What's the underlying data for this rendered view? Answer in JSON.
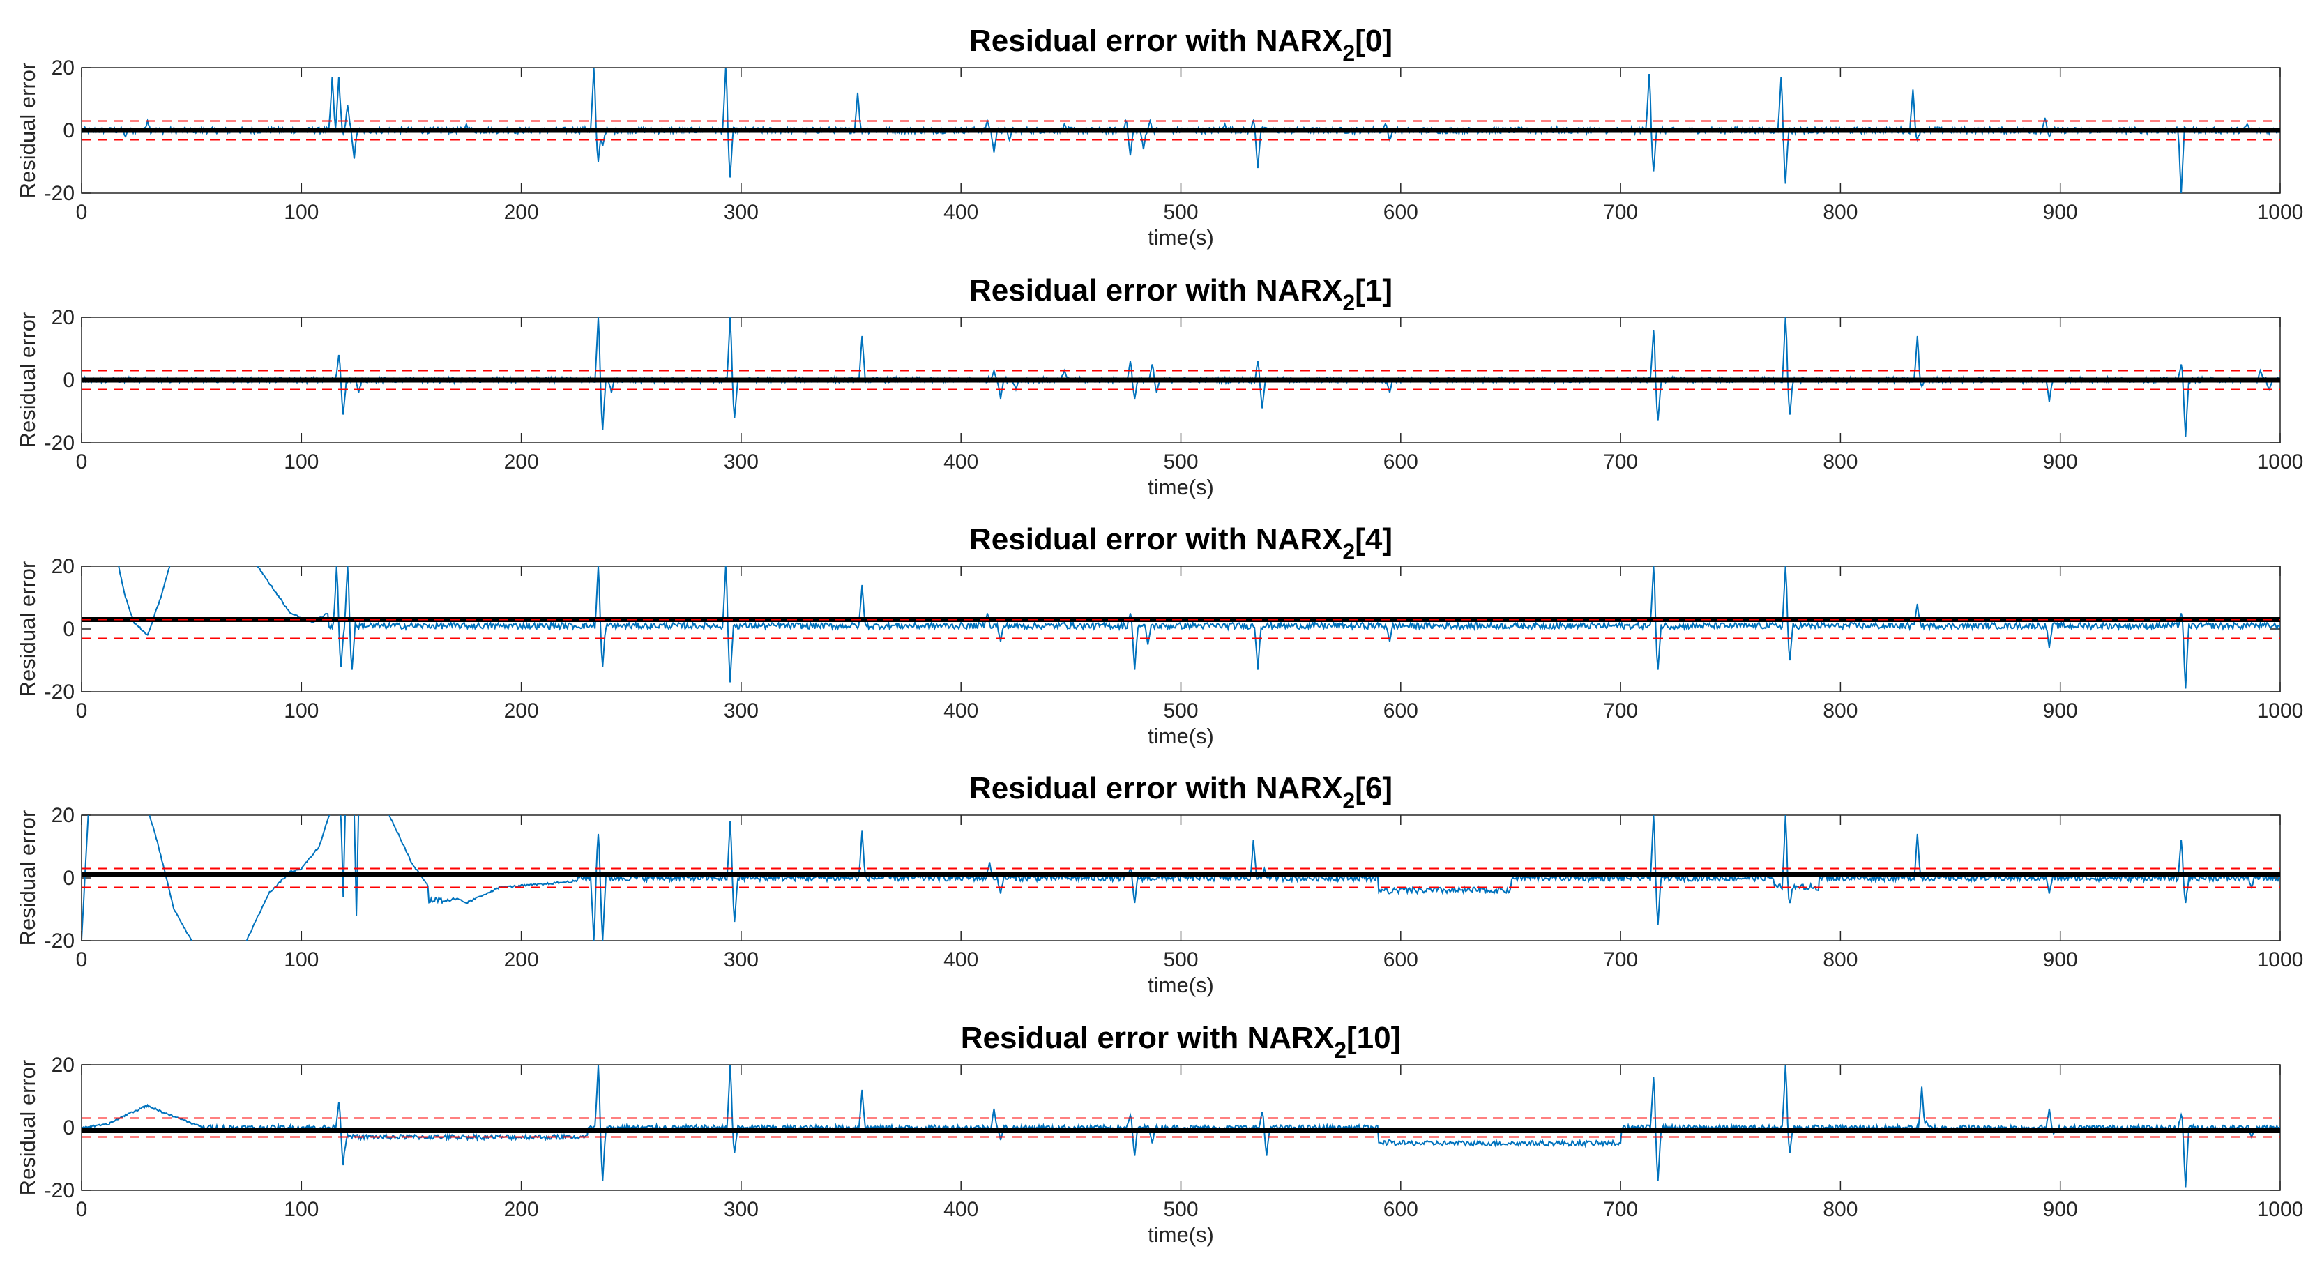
{
  "colors": {
    "residual": "#0072BD",
    "threshold": "#FF0000",
    "bias": "#000000",
    "axis": "#262626"
  },
  "chart_data": [
    {
      "type": "line",
      "title": "Residual error with NARX_2[0]",
      "title_parts": {
        "prefix": "Residual error with NARX",
        "subscript": "2",
        "suffix": "[0]"
      },
      "xlabel": "time(s)",
      "ylabel": "Residual error",
      "xlim": [
        0,
        1000
      ],
      "ylim": [
        -20,
        20
      ],
      "xticks": [
        0,
        100,
        200,
        300,
        400,
        500,
        600,
        700,
        800,
        900,
        1000
      ],
      "yticks": [
        -20,
        0,
        20
      ],
      "thresholds": [
        3,
        -3
      ],
      "bias_level": 0,
      "series": [
        {
          "name": "Residual error",
          "baseline": 0,
          "noise": 1.0,
          "events": [
            [
              20,
              -2
            ],
            [
              30,
              3
            ],
            [
              114,
              17
            ],
            [
              117,
              17
            ],
            [
              121,
              8
            ],
            [
              124,
              -9
            ],
            [
              175,
              2
            ],
            [
              233,
              20
            ],
            [
              235,
              -10
            ],
            [
              237,
              -5
            ],
            [
              293,
              20
            ],
            [
              295,
              -15
            ],
            [
              353,
              12
            ],
            [
              412,
              3
            ],
            [
              415,
              -7
            ],
            [
              422,
              -3
            ],
            [
              447,
              2
            ],
            [
              475,
              3
            ],
            [
              477,
              -8
            ],
            [
              483,
              -6
            ],
            [
              486,
              3
            ],
            [
              520,
              2
            ],
            [
              533,
              3
            ],
            [
              535,
              -12
            ],
            [
              593,
              2
            ],
            [
              595,
              -3
            ],
            [
              713,
              18
            ],
            [
              715,
              -13
            ],
            [
              773,
              17
            ],
            [
              775,
              -17
            ],
            [
              833,
              13
            ],
            [
              835,
              -3
            ],
            [
              893,
              4
            ],
            [
              895,
              -2
            ],
            [
              955,
              -20
            ],
            [
              985,
              2
            ]
          ]
        }
      ]
    },
    {
      "type": "line",
      "title": "Residual error with NARX_2[1]",
      "title_parts": {
        "prefix": "Residual error with NARX",
        "subscript": "2",
        "suffix": "[1]"
      },
      "xlabel": "time(s)",
      "ylabel": "Residual error",
      "xlim": [
        0,
        1000
      ],
      "ylim": [
        -20,
        20
      ],
      "xticks": [
        0,
        100,
        200,
        300,
        400,
        500,
        600,
        700,
        800,
        900,
        1000
      ],
      "yticks": [
        -20,
        0,
        20
      ],
      "thresholds": [
        3,
        -3
      ],
      "bias_level": 0,
      "series": [
        {
          "name": "Residual error",
          "baseline": 0,
          "noise": 0.8,
          "events": [
            [
              117,
              8
            ],
            [
              119,
              -11
            ],
            [
              126,
              -4
            ],
            [
              235,
              20
            ],
            [
              237,
              -16
            ],
            [
              241,
              -4
            ],
            [
              295,
              20
            ],
            [
              297,
              -12
            ],
            [
              355,
              14
            ],
            [
              415,
              3
            ],
            [
              418,
              -6
            ],
            [
              425,
              -3
            ],
            [
              447,
              3
            ],
            [
              477,
              6
            ],
            [
              479,
              -6
            ],
            [
              487,
              5
            ],
            [
              489,
              -4
            ],
            [
              535,
              6
            ],
            [
              537,
              -9
            ],
            [
              595,
              -4
            ],
            [
              715,
              16
            ],
            [
              717,
              -13
            ],
            [
              775,
              20
            ],
            [
              777,
              -11
            ],
            [
              835,
              14
            ],
            [
              837,
              -2
            ],
            [
              895,
              -7
            ],
            [
              955,
              5
            ],
            [
              957,
              -18
            ],
            [
              991,
              3
            ],
            [
              995,
              -3
            ]
          ]
        }
      ]
    },
    {
      "type": "line",
      "title": "Residual error with NARX_2[4]",
      "title_parts": {
        "prefix": "Residual error with NARX",
        "subscript": "2",
        "suffix": "[4]"
      },
      "xlabel": "time(s)",
      "ylabel": "Residual error",
      "xlim": [
        0,
        1000
      ],
      "ylim": [
        -20,
        20
      ],
      "xticks": [
        0,
        100,
        200,
        300,
        400,
        500,
        600,
        700,
        800,
        900,
        1000
      ],
      "yticks": [
        -20,
        0,
        20
      ],
      "thresholds": [
        3,
        -3
      ],
      "bias_level": 3,
      "series": [
        {
          "name": "Residual error",
          "baseline": 1,
          "noise": 1.0,
          "drift": [
            [
              0,
              60
            ],
            [
              12,
              35
            ],
            [
              20,
              10
            ],
            [
              24,
              2
            ],
            [
              30,
              -2
            ],
            [
              36,
              10
            ],
            [
              42,
              25
            ],
            [
              60,
              40
            ],
            [
              80,
              20
            ],
            [
              95,
              5
            ],
            [
              105,
              2
            ],
            [
              112,
              5
            ]
          ],
          "events": [
            [
              116,
              20
            ],
            [
              118,
              -12
            ],
            [
              121,
              20
            ],
            [
              123,
              -13
            ],
            [
              235,
              20
            ],
            [
              237,
              -12
            ],
            [
              293,
              20
            ],
            [
              295,
              -17
            ],
            [
              355,
              14
            ],
            [
              412,
              5
            ],
            [
              418,
              -4
            ],
            [
              447,
              2
            ],
            [
              477,
              5
            ],
            [
              479,
              -13
            ],
            [
              485,
              -5
            ],
            [
              535,
              -13
            ],
            [
              595,
              -4
            ],
            [
              715,
              20
            ],
            [
              717,
              -13
            ],
            [
              775,
              20
            ],
            [
              777,
              -10
            ],
            [
              835,
              8
            ],
            [
              895,
              -6
            ],
            [
              955,
              5
            ],
            [
              957,
              -19
            ],
            [
              987,
              2
            ]
          ]
        }
      ]
    },
    {
      "type": "line",
      "title": "Residual error with NARX_2[6]",
      "title_parts": {
        "prefix": "Residual error with NARX",
        "subscript": "2",
        "suffix": "[6]"
      },
      "xlabel": "time(s)",
      "ylabel": "Residual error",
      "xlim": [
        0,
        1000
      ],
      "ylim": [
        -20,
        20
      ],
      "xticks": [
        0,
        100,
        200,
        300,
        400,
        500,
        600,
        700,
        800,
        900,
        1000
      ],
      "yticks": [
        -20,
        0,
        20
      ],
      "thresholds": [
        3,
        -3
      ],
      "bias_level": 1,
      "series": [
        {
          "name": "Residual error",
          "baseline": 0,
          "noise": 1.0,
          "drift": [
            [
              0,
              -20
            ],
            [
              3,
              20
            ],
            [
              10,
              40
            ],
            [
              25,
              35
            ],
            [
              35,
              10
            ],
            [
              42,
              -10
            ],
            [
              50,
              -20
            ],
            [
              60,
              -35
            ],
            [
              75,
              -20
            ],
            [
              85,
              -5
            ],
            [
              95,
              2
            ],
            [
              100,
              3
            ],
            [
              108,
              10
            ],
            [
              115,
              25
            ],
            [
              122,
              40
            ],
            [
              140,
              20
            ],
            [
              150,
              5
            ],
            [
              158,
              -3
            ],
            [
              165,
              -5
            ],
            [
              175,
              -8
            ],
            [
              190,
              -3
            ],
            [
              210,
              -2
            ],
            [
              225,
              -1
            ]
          ],
          "events": [
            [
              117,
              20
            ],
            [
              119,
              -6
            ],
            [
              123,
              20
            ],
            [
              125,
              -12
            ],
            [
              233,
              -20
            ],
            [
              235,
              14
            ],
            [
              237,
              -20
            ],
            [
              295,
              18
            ],
            [
              297,
              -14
            ],
            [
              355,
              15
            ],
            [
              413,
              5
            ],
            [
              418,
              -5
            ],
            [
              477,
              3
            ],
            [
              479,
              -8
            ],
            [
              533,
              12
            ],
            [
              538,
              3
            ],
            [
              595,
              -5
            ],
            [
              715,
              20
            ],
            [
              717,
              -15
            ],
            [
              775,
              20
            ],
            [
              777,
              -8
            ],
            [
              835,
              14
            ],
            [
              895,
              -5
            ],
            [
              955,
              12
            ],
            [
              957,
              -8
            ],
            [
              987,
              -3
            ]
          ],
          "segments": [
            [
              158,
              170,
              -7
            ],
            [
              590,
              650,
              -4
            ],
            [
              770,
              790,
              -3
            ]
          ]
        }
      ]
    },
    {
      "type": "line",
      "title": "Residual error with NARX_2[10]",
      "title_parts": {
        "prefix": "Residual error with NARX",
        "subscript": "2",
        "suffix": "[10]"
      },
      "xlabel": "time(s)",
      "ylabel": "Residual error",
      "xlim": [
        0,
        1000
      ],
      "ylim": [
        -20,
        20
      ],
      "xticks": [
        0,
        100,
        200,
        300,
        400,
        500,
        600,
        700,
        800,
        900,
        1000
      ],
      "yticks": [
        -20,
        0,
        20
      ],
      "thresholds": [
        3,
        -3
      ],
      "bias_level": -1,
      "series": [
        {
          "name": "Residual error",
          "baseline": 0,
          "noise": 0.8,
          "drift": [
            [
              0,
              0
            ],
            [
              12,
              1
            ],
            [
              20,
              4
            ],
            [
              30,
              7
            ],
            [
              40,
              4
            ],
            [
              48,
              2
            ],
            [
              55,
              0
            ]
          ],
          "events": [
            [
              117,
              8
            ],
            [
              119,
              -12
            ],
            [
              235,
              20
            ],
            [
              237,
              -17
            ],
            [
              295,
              20
            ],
            [
              297,
              -8
            ],
            [
              355,
              12
            ],
            [
              415,
              6
            ],
            [
              418,
              -4
            ],
            [
              477,
              4
            ],
            [
              479,
              -9
            ],
            [
              487,
              -5
            ],
            [
              537,
              5
            ],
            [
              539,
              -9
            ],
            [
              595,
              -4
            ],
            [
              715,
              16
            ],
            [
              717,
              -17
            ],
            [
              775,
              20
            ],
            [
              777,
              -8
            ],
            [
              837,
              13
            ],
            [
              839,
              2
            ],
            [
              895,
              6
            ],
            [
              897,
              -2
            ],
            [
              955,
              4
            ],
            [
              957,
              -19
            ],
            [
              987,
              -3
            ]
          ],
          "segments": [
            [
              120,
              230,
              -3
            ],
            [
              590,
              700,
              -5
            ]
          ]
        }
      ]
    }
  ]
}
